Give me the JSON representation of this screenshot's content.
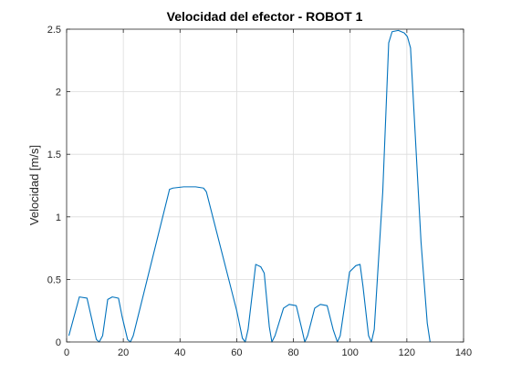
{
  "chart_data": {
    "type": "line",
    "title": "Velocidad del efector - ROBOT 1",
    "xlabel": "",
    "ylabel": "Velocidad [m/s]",
    "xlim": [
      0,
      140
    ],
    "ylim": [
      0,
      2.5
    ],
    "xticks": [
      0,
      20,
      40,
      60,
      80,
      100,
      120,
      140
    ],
    "yticks": [
      0,
      0.5,
      1,
      1.5,
      2,
      2.5
    ],
    "xtick_labels": [
      "0",
      "20",
      "40",
      "60",
      "80",
      "100",
      "120",
      "140"
    ],
    "ytick_labels": [
      "0",
      "0.5",
      "1",
      "1.5",
      "2",
      "2.5"
    ],
    "grid": true,
    "legend": "none",
    "series": [
      {
        "color": "#0072BD",
        "x": [
          0.8,
          4.5,
          7.2,
          8.5,
          10.5,
          11.5,
          12.7,
          14.5,
          16.1,
          18.3,
          19.6,
          21.5,
          22.5,
          23.5,
          36.3,
          37.5,
          41.3,
          45.5,
          48.3,
          49.3,
          60.0,
          62.0,
          63.0,
          64.0,
          66.7,
          68.5,
          69.7,
          71.5,
          72.4,
          73.5,
          76.5,
          78.5,
          81.0,
          83.0,
          84.0,
          85.0,
          87.5,
          89.5,
          91.9,
          94.0,
          95.5,
          96.5,
          99.8,
          102.0,
          103.5,
          104.5,
          106.5,
          107.5,
          108.5,
          111.5,
          113.6,
          114.8,
          117.0,
          119.1,
          120.2,
          121.3,
          125.0,
          127.2,
          128.2
        ],
        "y": [
          0.05,
          0.36,
          0.35,
          0.22,
          0.02,
          0.0,
          0.05,
          0.34,
          0.36,
          0.35,
          0.2,
          0.02,
          0.0,
          0.05,
          1.22,
          1.23,
          1.24,
          1.24,
          1.23,
          1.2,
          0.25,
          0.03,
          0.0,
          0.1,
          0.62,
          0.6,
          0.55,
          0.12,
          0.0,
          0.05,
          0.27,
          0.3,
          0.29,
          0.1,
          0.0,
          0.05,
          0.27,
          0.3,
          0.29,
          0.1,
          0.0,
          0.05,
          0.56,
          0.61,
          0.62,
          0.45,
          0.05,
          0.0,
          0.1,
          1.2,
          2.39,
          2.48,
          2.49,
          2.47,
          2.44,
          2.35,
          0.8,
          0.15,
          0.0
        ]
      }
    ]
  }
}
